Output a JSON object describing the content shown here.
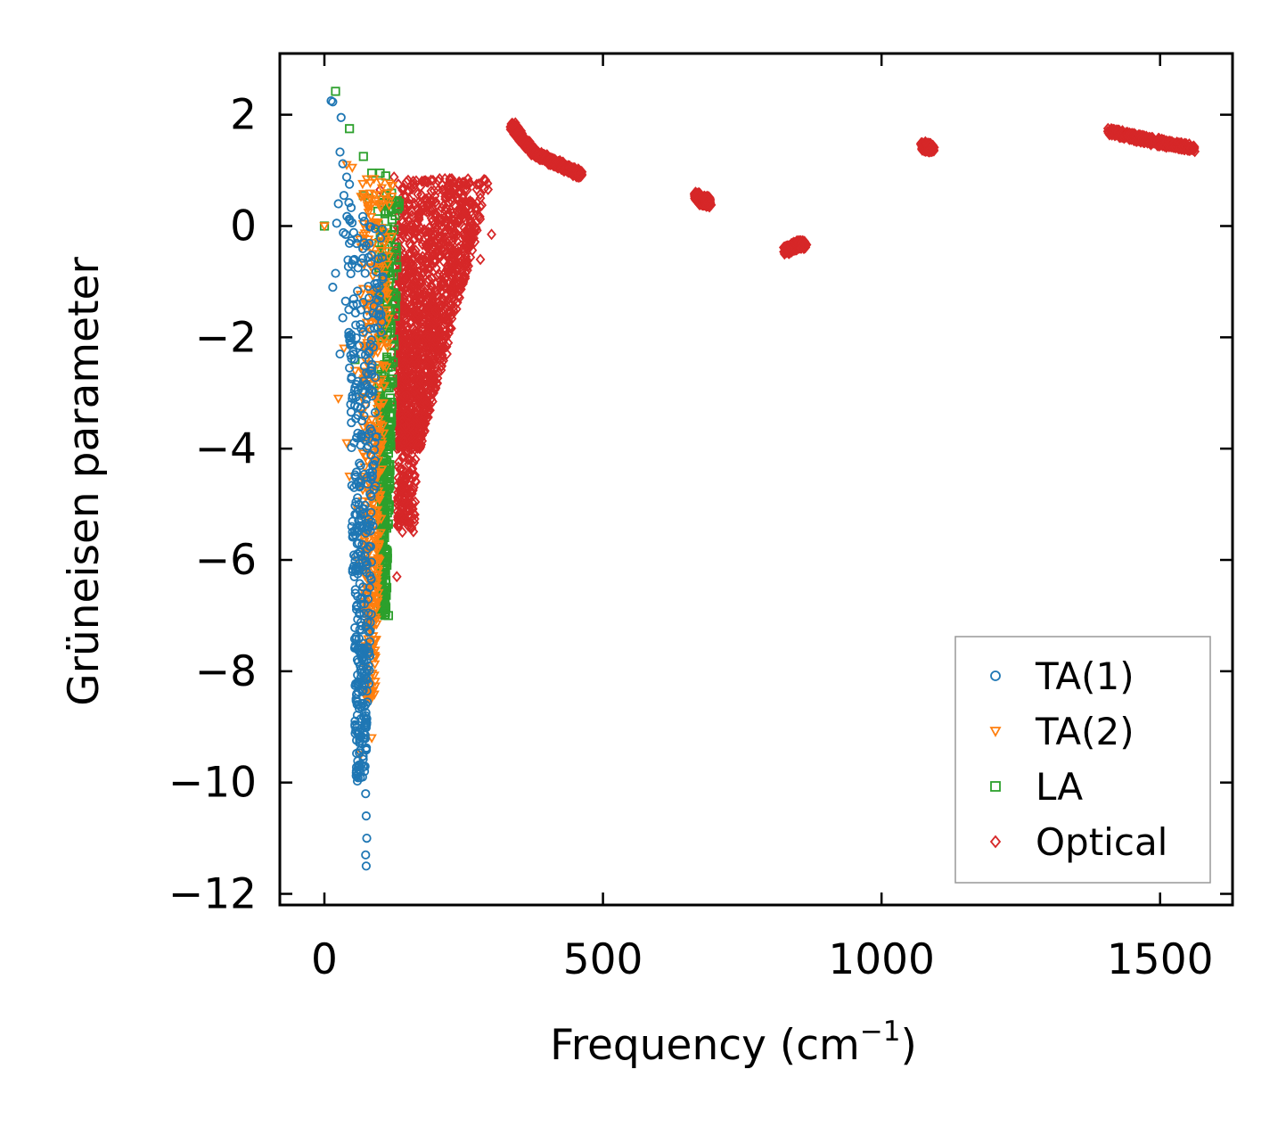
{
  "chart_data": {
    "type": "scatter",
    "title": "",
    "xlabel": "Frequency (cm",
    "xlabel_superscript": "−1",
    "xlabel_suffix": ")",
    "ylabel": "Grüneisen parameter",
    "xlim": [
      -80,
      1630
    ],
    "ylim": [
      -12.2,
      3.1
    ],
    "x_ticks": [
      0,
      500,
      1000,
      1500
    ],
    "x_tick_labels": [
      "0",
      "500",
      "1000",
      "1500"
    ],
    "y_ticks": [
      2,
      0,
      -2,
      -4,
      -6,
      -8,
      -10,
      -12
    ],
    "y_tick_labels": [
      "2",
      "0",
      "−2",
      "−4",
      "−6",
      "−8",
      "−10",
      "−12"
    ],
    "legend_position": "bottom-right",
    "colors": {
      "ta1": "#1f77b4",
      "ta2": "#ff7f0e",
      "la": "#2ca02c",
      "optical": "#d62728"
    },
    "series": [
      {
        "name": "TA(1)",
        "marker": "circle",
        "color_key": "ta1",
        "points": [
          [
            12,
            2.25
          ],
          [
            15,
            2.23
          ],
          [
            30,
            1.95
          ],
          [
            28,
            1.33
          ],
          [
            33,
            1.12
          ],
          [
            40,
            0.88
          ],
          [
            45,
            0.75
          ],
          [
            35,
            0.55
          ],
          [
            44,
            0.42
          ],
          [
            25,
            0.4
          ],
          [
            48,
            0.33
          ],
          [
            22,
            0.05
          ],
          [
            34,
            -0.12
          ],
          [
            38,
            -0.15
          ],
          [
            20,
            -0.85
          ],
          [
            15,
            -1.1
          ],
          [
            38,
            -1.35
          ],
          [
            33,
            -1.65
          ],
          [
            48,
            -1.95
          ],
          [
            28,
            -2.3
          ],
          [
            45,
            -2.55
          ],
          [
            55,
            -2.9
          ],
          [
            50,
            -3.1
          ],
          [
            60,
            -3.4
          ],
          [
            58,
            -3.8
          ],
          [
            65,
            -4.3
          ],
          [
            62,
            -4.6
          ],
          [
            65,
            -5.2
          ],
          [
            60,
            -5.5
          ],
          [
            68,
            -6.0
          ],
          [
            66,
            -6.8
          ],
          [
            70,
            -7.5
          ],
          [
            72,
            -8.0
          ],
          [
            74,
            -8.6
          ],
          [
            70,
            -9.2
          ],
          [
            72,
            -9.8
          ],
          [
            74,
            -10.2
          ],
          [
            75,
            -10.6
          ],
          [
            76,
            -11.0
          ],
          [
            74,
            -11.3
          ],
          [
            75,
            -11.5
          ]
        ],
        "band": {
          "x_min": 40,
          "x_max": 110,
          "y_top": 0.2,
          "y_bottom": -10.0
        }
      },
      {
        "name": "TA(2)",
        "marker": "triangle-down",
        "color_key": "ta2",
        "points": [
          [
            0,
            0.0
          ],
          [
            40,
            1.1
          ],
          [
            50,
            1.05
          ],
          [
            98,
            0.4
          ],
          [
            35,
            -2.2
          ],
          [
            25,
            -3.1
          ],
          [
            40,
            -3.9
          ],
          [
            45,
            -4.5
          ],
          [
            60,
            -5.1
          ],
          [
            60,
            -6.0
          ],
          [
            75,
            -7.0
          ],
          [
            80,
            -8.5
          ],
          [
            85,
            -9.2
          ],
          [
            65,
            -9.5
          ],
          [
            55,
            -2.6
          ]
        ],
        "band": {
          "x_min": 60,
          "x_max": 125,
          "y_top": 0.9,
          "y_bottom": -8.5
        }
      },
      {
        "name": "LA",
        "marker": "square",
        "color_key": "la",
        "points": [
          [
            20,
            2.42
          ],
          [
            45,
            1.75
          ],
          [
            70,
            1.25
          ],
          [
            85,
            0.95
          ],
          [
            100,
            0.95
          ],
          [
            110,
            0.9
          ],
          [
            70,
            0.55
          ],
          [
            80,
            0.5
          ],
          [
            0,
            0.0
          ],
          [
            55,
            -2.4
          ],
          [
            70,
            -3.0
          ],
          [
            105,
            -5.5
          ],
          [
            112,
            -6.5
          ],
          [
            115,
            -7.0
          ]
        ],
        "band": {
          "x_min": 95,
          "x_max": 135,
          "y_top": 0.6,
          "y_bottom": -7.0
        }
      },
      {
        "name": "Optical",
        "marker": "diamond",
        "color_key": "optical",
        "points": [
          [
            100,
            0.65
          ],
          [
            125,
            0.88
          ],
          [
            160,
            0.75
          ],
          [
            195,
            0.82
          ],
          [
            225,
            0.85
          ],
          [
            255,
            0.75
          ],
          [
            185,
            -2.0
          ],
          [
            220,
            -2.3
          ],
          [
            180,
            -3.4
          ],
          [
            150,
            -4.2
          ],
          [
            140,
            -5.5
          ],
          [
            130,
            -6.3
          ],
          [
            280,
            -0.6
          ],
          [
            300,
            -0.15
          ]
        ],
        "regions": [
          {
            "x_min": 130,
            "x_max": 300,
            "y_top": 0.85,
            "y_bottom": -4.0
          },
          {
            "x_min": 130,
            "x_max": 165,
            "y_top": -3.5,
            "y_bottom": -5.5
          }
        ],
        "curves": [
          {
            "x": [
              338,
              355,
              380,
              410,
              440,
              460
            ],
            "y": [
              1.8,
              1.55,
              1.3,
              1.15,
              1.02,
              0.92
            ]
          },
          {
            "x": [
              668,
              673,
              680,
              686,
              690
            ],
            "y": [
              0.55,
              0.48,
              0.42,
              0.48,
              0.4
            ]
          },
          {
            "x": [
              828,
              840,
              852,
              862
            ],
            "y": [
              -0.45,
              -0.38,
              -0.32,
              -0.35
            ]
          },
          {
            "x": [
              1075,
              1080,
              1085,
              1090
            ],
            "y": [
              1.45,
              1.4,
              1.43,
              1.38
            ]
          },
          {
            "x": [
              1410,
              1450,
              1500,
              1560
            ],
            "y": [
              1.7,
              1.6,
              1.5,
              1.4
            ]
          }
        ]
      }
    ]
  }
}
